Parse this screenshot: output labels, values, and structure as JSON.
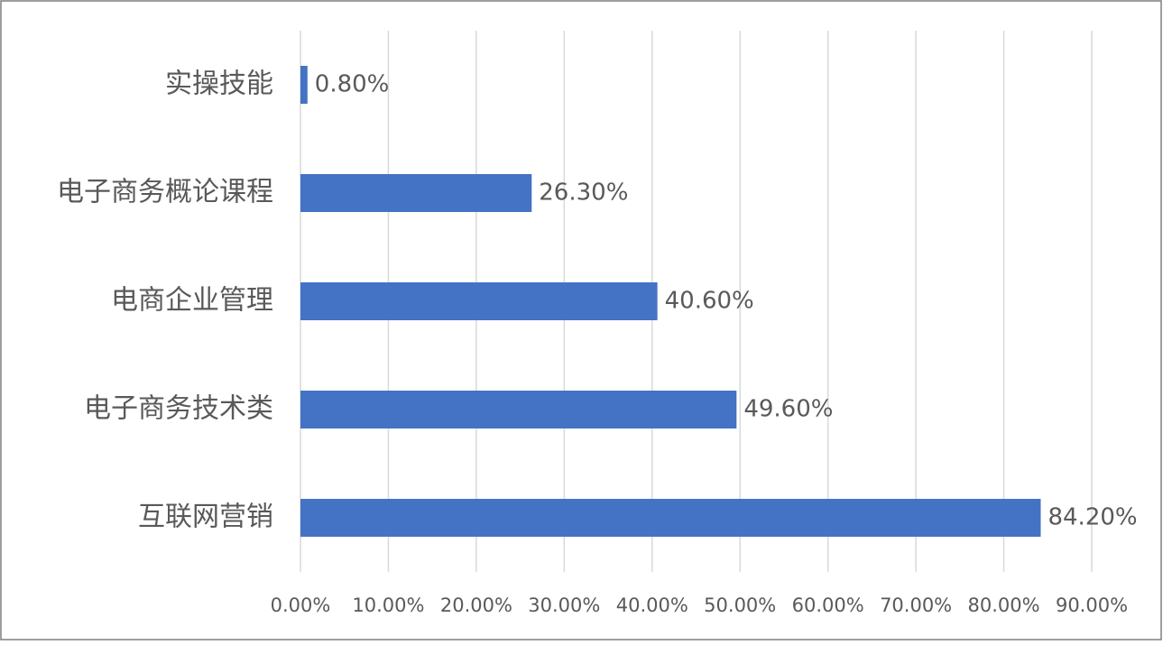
{
  "chart_data": {
    "type": "bar",
    "orientation": "horizontal",
    "categories": [
      "实操技能",
      "电子商务概论课程",
      "电商企业管理",
      "电子商务技术类",
      "互联网营销"
    ],
    "values": [
      0.8,
      26.3,
      40.6,
      49.6,
      84.2
    ],
    "value_labels": [
      "0.80%",
      "26.30%",
      "40.60%",
      "49.60%",
      "84.20%"
    ],
    "color": "#4472c4",
    "xlim": [
      0,
      90
    ],
    "xticks": [
      {
        "value": 0,
        "label": "0.00%"
      },
      {
        "value": 10,
        "label": "10.00%"
      },
      {
        "value": 20,
        "label": "20.00%"
      },
      {
        "value": 30,
        "label": "30.00%"
      },
      {
        "value": 40,
        "label": "40.00%"
      },
      {
        "value": 50,
        "label": "50.00%"
      },
      {
        "value": 60,
        "label": "60.00%"
      },
      {
        "value": 70,
        "label": "70.00%"
      },
      {
        "value": 80,
        "label": "80.00%"
      },
      {
        "value": 90,
        "label": "90.00%"
      }
    ],
    "grid": true
  }
}
